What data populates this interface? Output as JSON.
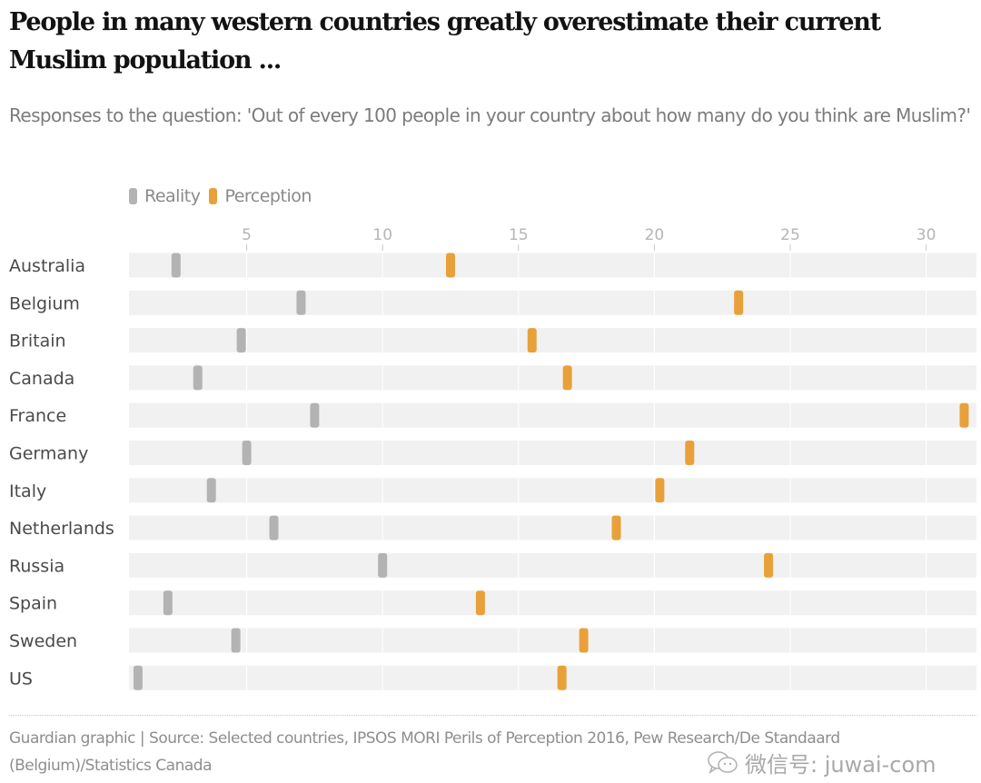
{
  "chart_data": {
    "type": "dot-range",
    "title": "People in many western countries greatly overestimate their current Muslim population ...",
    "subtitle": "Responses to the question: 'Out of every 100 people in your country about how many do you think are Muslim?'",
    "xlabel": "",
    "ylabel": "",
    "xlim": [
      0,
      31.7
    ],
    "xticks": [
      5,
      10,
      15,
      20,
      25,
      30
    ],
    "grid": true,
    "legend_position": "top-left",
    "categories": [
      "Australia",
      "Belgium",
      "Britain",
      "Canada",
      "France",
      "Germany",
      "Italy",
      "Netherlands",
      "Russia",
      "Spain",
      "Sweden",
      "US"
    ],
    "series": [
      {
        "name": "Reality",
        "color": "#b3b3b3",
        "values": [
          2.4,
          7.0,
          4.8,
          3.2,
          7.5,
          5.0,
          3.7,
          6.0,
          10.0,
          2.1,
          4.6,
          1.0
        ]
      },
      {
        "name": "Perception",
        "color": "#e8a13a",
        "values": [
          12.5,
          23.1,
          15.5,
          16.8,
          31.4,
          21.3,
          20.2,
          18.6,
          24.2,
          13.6,
          17.4,
          16.6
        ]
      }
    ]
  },
  "legend": {
    "items": [
      {
        "label": "Reality",
        "color": "#b3b3b3"
      },
      {
        "label": "Perception",
        "color": "#e8a13a"
      }
    ]
  },
  "footer": {
    "source": "Guardian graphic | Source: Selected countries, IPSOS MORI Perils of Perception 2016, Pew Research/De Standaard (Belgium)/Statistics Canada"
  },
  "watermark": {
    "icon": "wechat-icon",
    "text": "微信号: juwai-com"
  },
  "colors": {
    "track": "#f1f1f1",
    "gridline": "#ffffff"
  }
}
